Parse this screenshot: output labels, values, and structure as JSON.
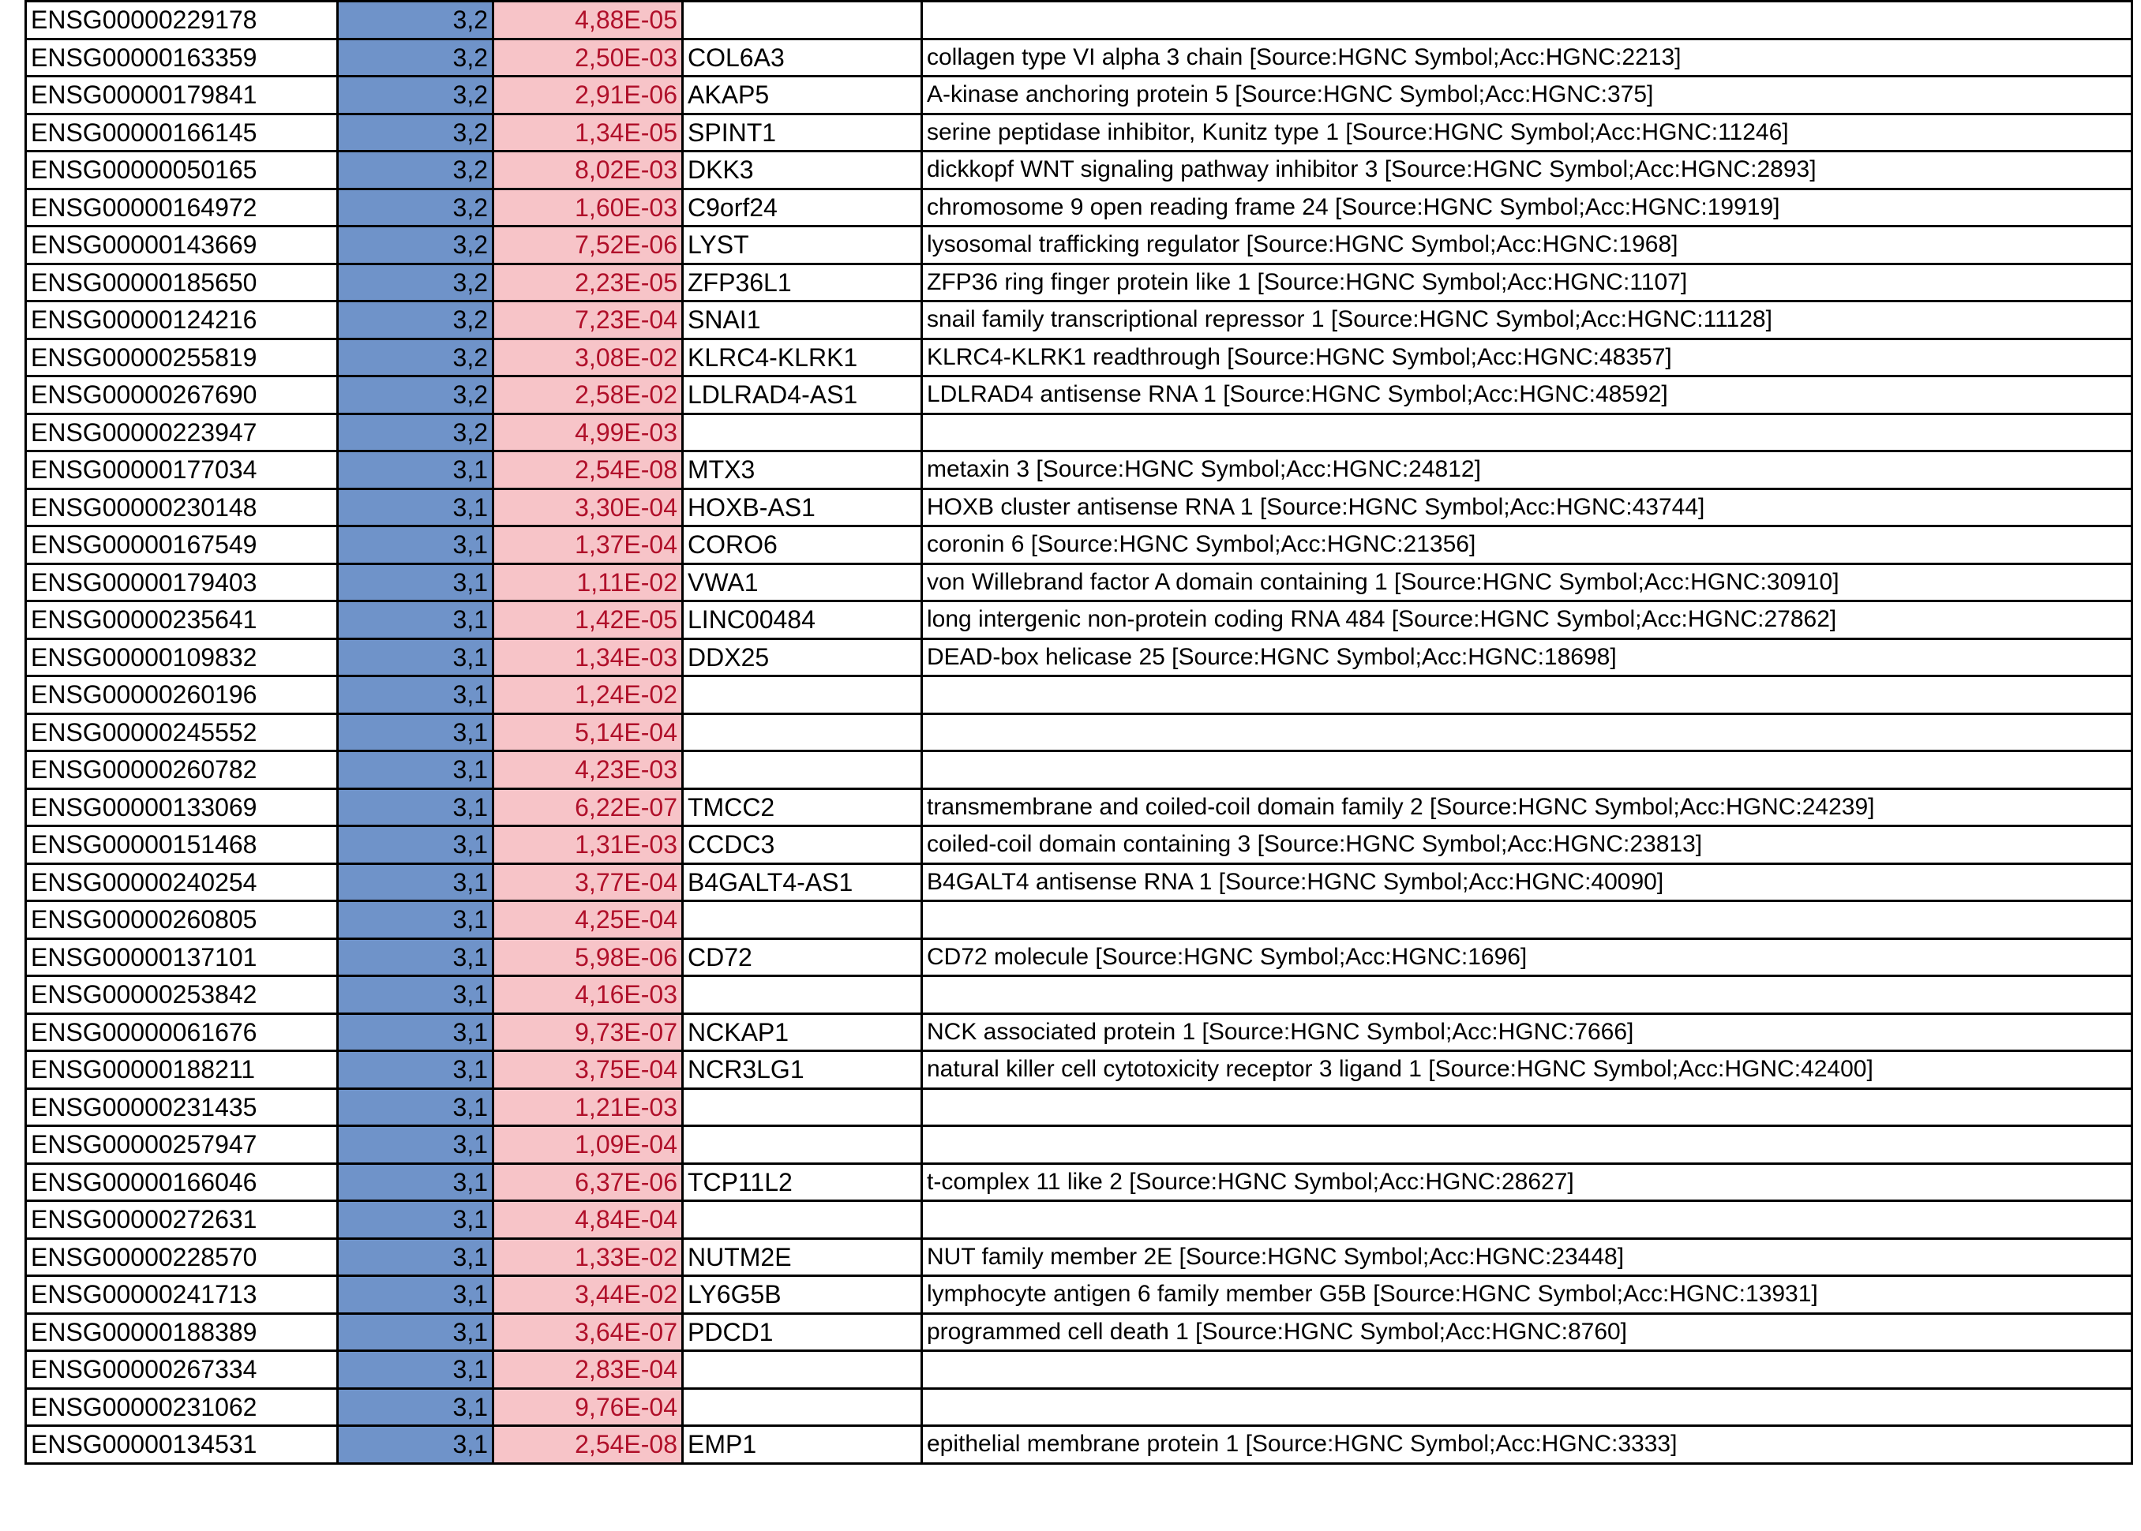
{
  "table": {
    "rows": [
      {
        "id": "ENSG00000229178",
        "fc": "3,2",
        "p": "4,88E-05",
        "symbol": "",
        "desc": ""
      },
      {
        "id": "ENSG00000163359",
        "fc": "3,2",
        "p": "2,50E-03",
        "symbol": "COL6A3",
        "desc": "collagen type VI alpha 3 chain [Source:HGNC Symbol;Acc:HGNC:2213]"
      },
      {
        "id": "ENSG00000179841",
        "fc": "3,2",
        "p": "2,91E-06",
        "symbol": "AKAP5",
        "desc": "A-kinase anchoring protein 5 [Source:HGNC Symbol;Acc:HGNC:375]"
      },
      {
        "id": "ENSG00000166145",
        "fc": "3,2",
        "p": "1,34E-05",
        "symbol": "SPINT1",
        "desc": "serine peptidase inhibitor, Kunitz type 1 [Source:HGNC Symbol;Acc:HGNC:11246]"
      },
      {
        "id": "ENSG00000050165",
        "fc": "3,2",
        "p": "8,02E-03",
        "symbol": "DKK3",
        "desc": "dickkopf WNT signaling pathway inhibitor 3 [Source:HGNC Symbol;Acc:HGNC:2893]"
      },
      {
        "id": "ENSG00000164972",
        "fc": "3,2",
        "p": "1,60E-03",
        "symbol": "C9orf24",
        "desc": "chromosome 9 open reading frame 24 [Source:HGNC Symbol;Acc:HGNC:19919]"
      },
      {
        "id": "ENSG00000143669",
        "fc": "3,2",
        "p": "7,52E-06",
        "symbol": "LYST",
        "desc": "lysosomal trafficking regulator [Source:HGNC Symbol;Acc:HGNC:1968]"
      },
      {
        "id": "ENSG00000185650",
        "fc": "3,2",
        "p": "2,23E-05",
        "symbol": "ZFP36L1",
        "desc": "ZFP36 ring finger protein like 1 [Source:HGNC Symbol;Acc:HGNC:1107]"
      },
      {
        "id": "ENSG00000124216",
        "fc": "3,2",
        "p": "7,23E-04",
        "symbol": "SNAI1",
        "desc": "snail family transcriptional repressor 1 [Source:HGNC Symbol;Acc:HGNC:11128]"
      },
      {
        "id": "ENSG00000255819",
        "fc": "3,2",
        "p": "3,08E-02",
        "symbol": "KLRC4-KLRK1",
        "desc": "KLRC4-KLRK1 readthrough [Source:HGNC Symbol;Acc:HGNC:48357]"
      },
      {
        "id": "ENSG00000267690",
        "fc": "3,2",
        "p": "2,58E-02",
        "symbol": "LDLRAD4-AS1",
        "desc": "LDLRAD4 antisense RNA 1 [Source:HGNC Symbol;Acc:HGNC:48592]"
      },
      {
        "id": "ENSG00000223947",
        "fc": "3,2",
        "p": "4,99E-03",
        "symbol": "",
        "desc": ""
      },
      {
        "id": "ENSG00000177034",
        "fc": "3,1",
        "p": "2,54E-08",
        "symbol": "MTX3",
        "desc": "metaxin 3 [Source:HGNC Symbol;Acc:HGNC:24812]"
      },
      {
        "id": "ENSG00000230148",
        "fc": "3,1",
        "p": "3,30E-04",
        "symbol": "HOXB-AS1",
        "desc": "HOXB cluster antisense RNA 1 [Source:HGNC Symbol;Acc:HGNC:43744]"
      },
      {
        "id": "ENSG00000167549",
        "fc": "3,1",
        "p": "1,37E-04",
        "symbol": "CORO6",
        "desc": "coronin 6 [Source:HGNC Symbol;Acc:HGNC:21356]"
      },
      {
        "id": "ENSG00000179403",
        "fc": "3,1",
        "p": "1,11E-02",
        "symbol": "VWA1",
        "desc": "von Willebrand factor A domain containing 1 [Source:HGNC Symbol;Acc:HGNC:30910]"
      },
      {
        "id": "ENSG00000235641",
        "fc": "3,1",
        "p": "1,42E-05",
        "symbol": "LINC00484",
        "desc": "long intergenic non-protein coding RNA 484 [Source:HGNC Symbol;Acc:HGNC:27862]"
      },
      {
        "id": "ENSG00000109832",
        "fc": "3,1",
        "p": "1,34E-03",
        "symbol": "DDX25",
        "desc": "DEAD-box helicase 25 [Source:HGNC Symbol;Acc:HGNC:18698]"
      },
      {
        "id": "ENSG00000260196",
        "fc": "3,1",
        "p": "1,24E-02",
        "symbol": "",
        "desc": ""
      },
      {
        "id": "ENSG00000245552",
        "fc": "3,1",
        "p": "5,14E-04",
        "symbol": "",
        "desc": ""
      },
      {
        "id": "ENSG00000260782",
        "fc": "3,1",
        "p": "4,23E-03",
        "symbol": "",
        "desc": ""
      },
      {
        "id": "ENSG00000133069",
        "fc": "3,1",
        "p": "6,22E-07",
        "symbol": "TMCC2",
        "desc": "transmembrane and coiled-coil domain family 2 [Source:HGNC Symbol;Acc:HGNC:24239]"
      },
      {
        "id": "ENSG00000151468",
        "fc": "3,1",
        "p": "1,31E-03",
        "symbol": "CCDC3",
        "desc": "coiled-coil domain containing 3 [Source:HGNC Symbol;Acc:HGNC:23813]"
      },
      {
        "id": "ENSG00000240254",
        "fc": "3,1",
        "p": "3,77E-04",
        "symbol": "B4GALT4-AS1",
        "desc": "B4GALT4 antisense RNA 1 [Source:HGNC Symbol;Acc:HGNC:40090]"
      },
      {
        "id": "ENSG00000260805",
        "fc": "3,1",
        "p": "4,25E-04",
        "symbol": "",
        "desc": ""
      },
      {
        "id": "ENSG00000137101",
        "fc": "3,1",
        "p": "5,98E-06",
        "symbol": "CD72",
        "desc": "CD72 molecule [Source:HGNC Symbol;Acc:HGNC:1696]"
      },
      {
        "id": "ENSG00000253842",
        "fc": "3,1",
        "p": "4,16E-03",
        "symbol": "",
        "desc": ""
      },
      {
        "id": "ENSG00000061676",
        "fc": "3,1",
        "p": "9,73E-07",
        "symbol": "NCKAP1",
        "desc": "NCK associated protein 1 [Source:HGNC Symbol;Acc:HGNC:7666]"
      },
      {
        "id": "ENSG00000188211",
        "fc": "3,1",
        "p": "3,75E-04",
        "symbol": "NCR3LG1",
        "desc": "natural killer cell cytotoxicity receptor 3 ligand 1 [Source:HGNC Symbol;Acc:HGNC:42400]"
      },
      {
        "id": "ENSG00000231435",
        "fc": "3,1",
        "p": "1,21E-03",
        "symbol": "",
        "desc": ""
      },
      {
        "id": "ENSG00000257947",
        "fc": "3,1",
        "p": "1,09E-04",
        "symbol": "",
        "desc": ""
      },
      {
        "id": "ENSG00000166046",
        "fc": "3,1",
        "p": "6,37E-06",
        "symbol": "TCP11L2",
        "desc": "t-complex 11 like 2 [Source:HGNC Symbol;Acc:HGNC:28627]"
      },
      {
        "id": "ENSG00000272631",
        "fc": "3,1",
        "p": "4,84E-04",
        "symbol": "",
        "desc": ""
      },
      {
        "id": "ENSG00000228570",
        "fc": "3,1",
        "p": "1,33E-02",
        "symbol": "NUTM2E",
        "desc": "NUT family member 2E [Source:HGNC Symbol;Acc:HGNC:23448]"
      },
      {
        "id": "ENSG00000241713",
        "fc": "3,1",
        "p": "3,44E-02",
        "symbol": "LY6G5B",
        "desc": "lymphocyte antigen 6 family member G5B [Source:HGNC Symbol;Acc:HGNC:13931]"
      },
      {
        "id": "ENSG00000188389",
        "fc": "3,1",
        "p": "3,64E-07",
        "symbol": "PDCD1",
        "desc": "programmed cell death 1 [Source:HGNC Symbol;Acc:HGNC:8760]"
      },
      {
        "id": "ENSG00000267334",
        "fc": "3,1",
        "p": "2,83E-04",
        "symbol": "",
        "desc": ""
      },
      {
        "id": "ENSG00000231062",
        "fc": "3,1",
        "p": "9,76E-04",
        "symbol": "",
        "desc": ""
      },
      {
        "id": "ENSG00000134531",
        "fc": "3,1",
        "p": "2,54E-08",
        "symbol": "EMP1",
        "desc": "epithelial membrane protein 1 [Source:HGNC Symbol;Acc:HGNC:3333]"
      }
    ]
  },
  "colors": {
    "fold_change_fill": "#6f93c9",
    "pvalue_fill": "#f7c4c8",
    "pvalue_text": "#b0102a"
  }
}
